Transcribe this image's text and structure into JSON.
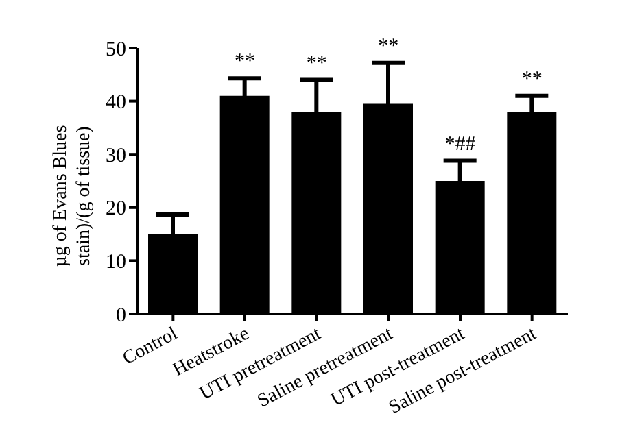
{
  "chart_data": {
    "type": "bar",
    "ylabel": "µg of Evans Blues stain)/(g of tissue)",
    "categories": [
      "Control",
      "Heatstroke",
      "UTI pretreatment",
      "Saline pretreatment",
      "UTI post-treatment",
      "Saline post-treatment"
    ],
    "values": [
      15,
      41,
      38,
      39.5,
      25,
      38
    ],
    "errors": [
      3.7,
      3.3,
      6,
      7.7,
      3.8,
      3
    ],
    "color": "#000000",
    "ylim": [
      0,
      50
    ],
    "yticks": [
      0,
      10,
      20,
      30,
      40,
      50
    ],
    "grid": false,
    "annotations": [
      {
        "text": "**",
        "x": "Heatstroke",
        "y": 41
      },
      {
        "text": "**",
        "x": "UTI pretreatment",
        "y": 38
      },
      {
        "text": "**",
        "x": "Saline pretreatment",
        "y": 39.5
      },
      {
        "text": "*##",
        "x": "UTI post-treatment",
        "y": 25
      },
      {
        "text": "**",
        "x": "Saline post-treatment",
        "y": 38
      }
    ]
  }
}
